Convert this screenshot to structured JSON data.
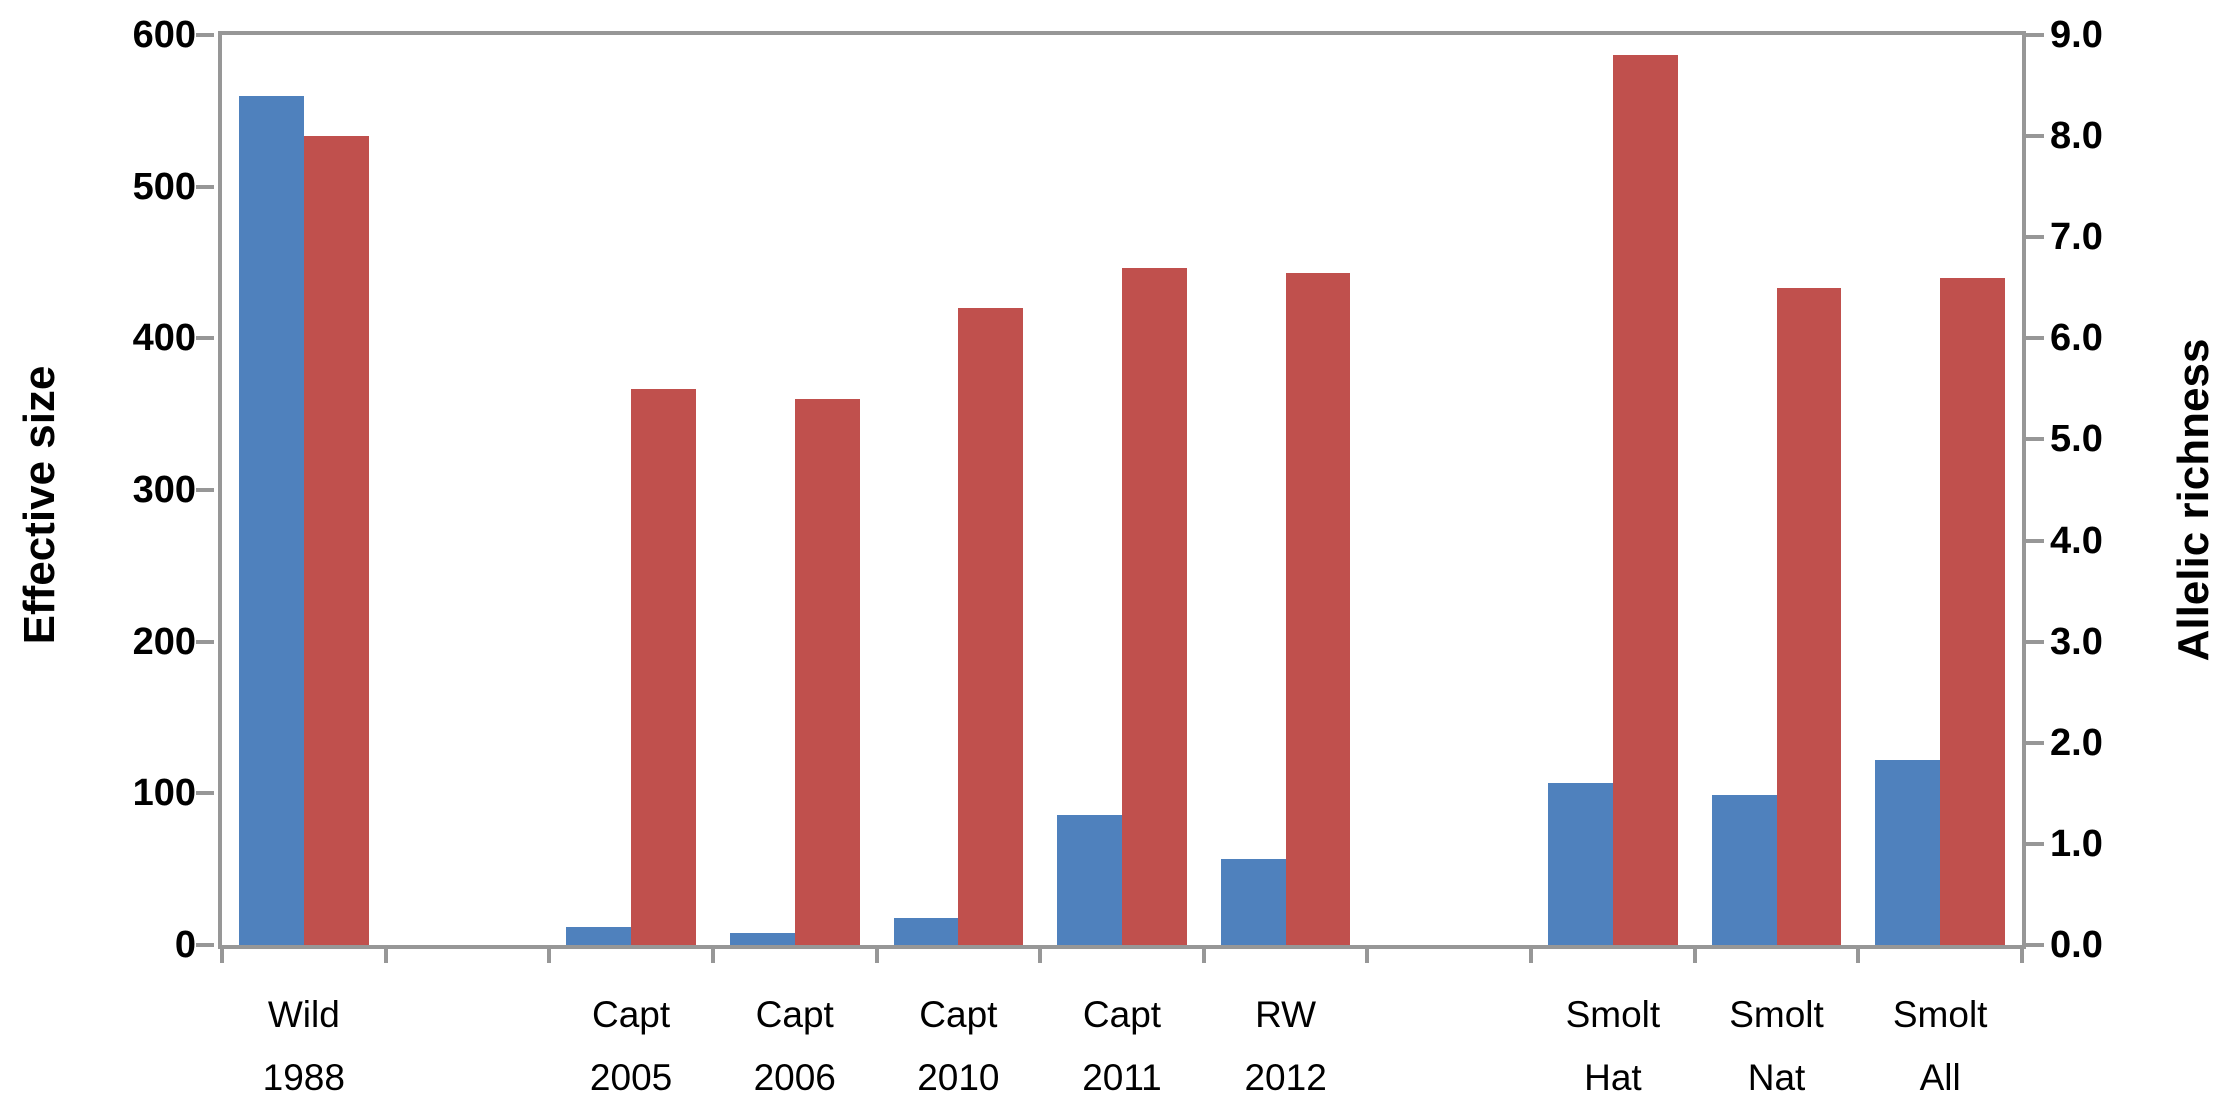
{
  "chart_data": {
    "type": "bar",
    "title": "",
    "legend": "none",
    "num_slots": 11,
    "left_axis": {
      "label": "Effective size",
      "min": 0,
      "max": 600,
      "tick_step": 100,
      "tick_labels": [
        "0",
        "100",
        "200",
        "300",
        "400",
        "500",
        "600"
      ]
    },
    "right_axis": {
      "label": "Allelic richness",
      "min": 0,
      "max": 9,
      "tick_step": 1,
      "tick_labels": [
        "0.0",
        "1.0",
        "2.0",
        "3.0",
        "4.0",
        "5.0",
        "6.0",
        "7.0",
        "8.0",
        "9.0"
      ]
    },
    "series": [
      {
        "name": "Effective size",
        "axis": "left",
        "color": "#4F81BD"
      },
      {
        "name": "Allelic richness",
        "axis": "right",
        "color": "#C0504D"
      }
    ],
    "categories": [
      {
        "line1": "Wild",
        "line2": "1988",
        "slot": 0,
        "effective_size": 560,
        "allelic_richness": 8.0
      },
      {
        "line1": "Capt",
        "line2": "2005",
        "slot": 2,
        "effective_size": 12,
        "allelic_richness": 5.5
      },
      {
        "line1": "Capt",
        "line2": "2006",
        "slot": 3,
        "effective_size": 8,
        "allelic_richness": 5.4
      },
      {
        "line1": "Capt",
        "line2": "2010",
        "slot": 4,
        "effective_size": 18,
        "allelic_richness": 6.3
      },
      {
        "line1": "Capt",
        "line2": "2011",
        "slot": 5,
        "effective_size": 86,
        "allelic_richness": 6.7
      },
      {
        "line1": "RW",
        "line2": "2012",
        "slot": 6,
        "effective_size": 57,
        "allelic_richness": 6.65
      },
      {
        "line1": "Smolt",
        "line2": "Hat",
        "slot": 8,
        "effective_size": 107,
        "allelic_richness": 8.8
      },
      {
        "line1": "Smolt",
        "line2": "Nat",
        "slot": 9,
        "effective_size": 99,
        "allelic_richness": 6.5
      },
      {
        "line1": "Smolt",
        "line2": "All",
        "slot": 10,
        "effective_size": 122,
        "allelic_richness": 6.6
      }
    ],
    "colors": {
      "effective_size_bar": "#4F81BD",
      "allelic_richness_bar": "#C0504D",
      "axis_line": "#979797",
      "text": "#000000"
    },
    "layout_hints": {
      "grid": "off",
      "dual_axis": true,
      "bar_pairs_share_slot": true
    }
  }
}
